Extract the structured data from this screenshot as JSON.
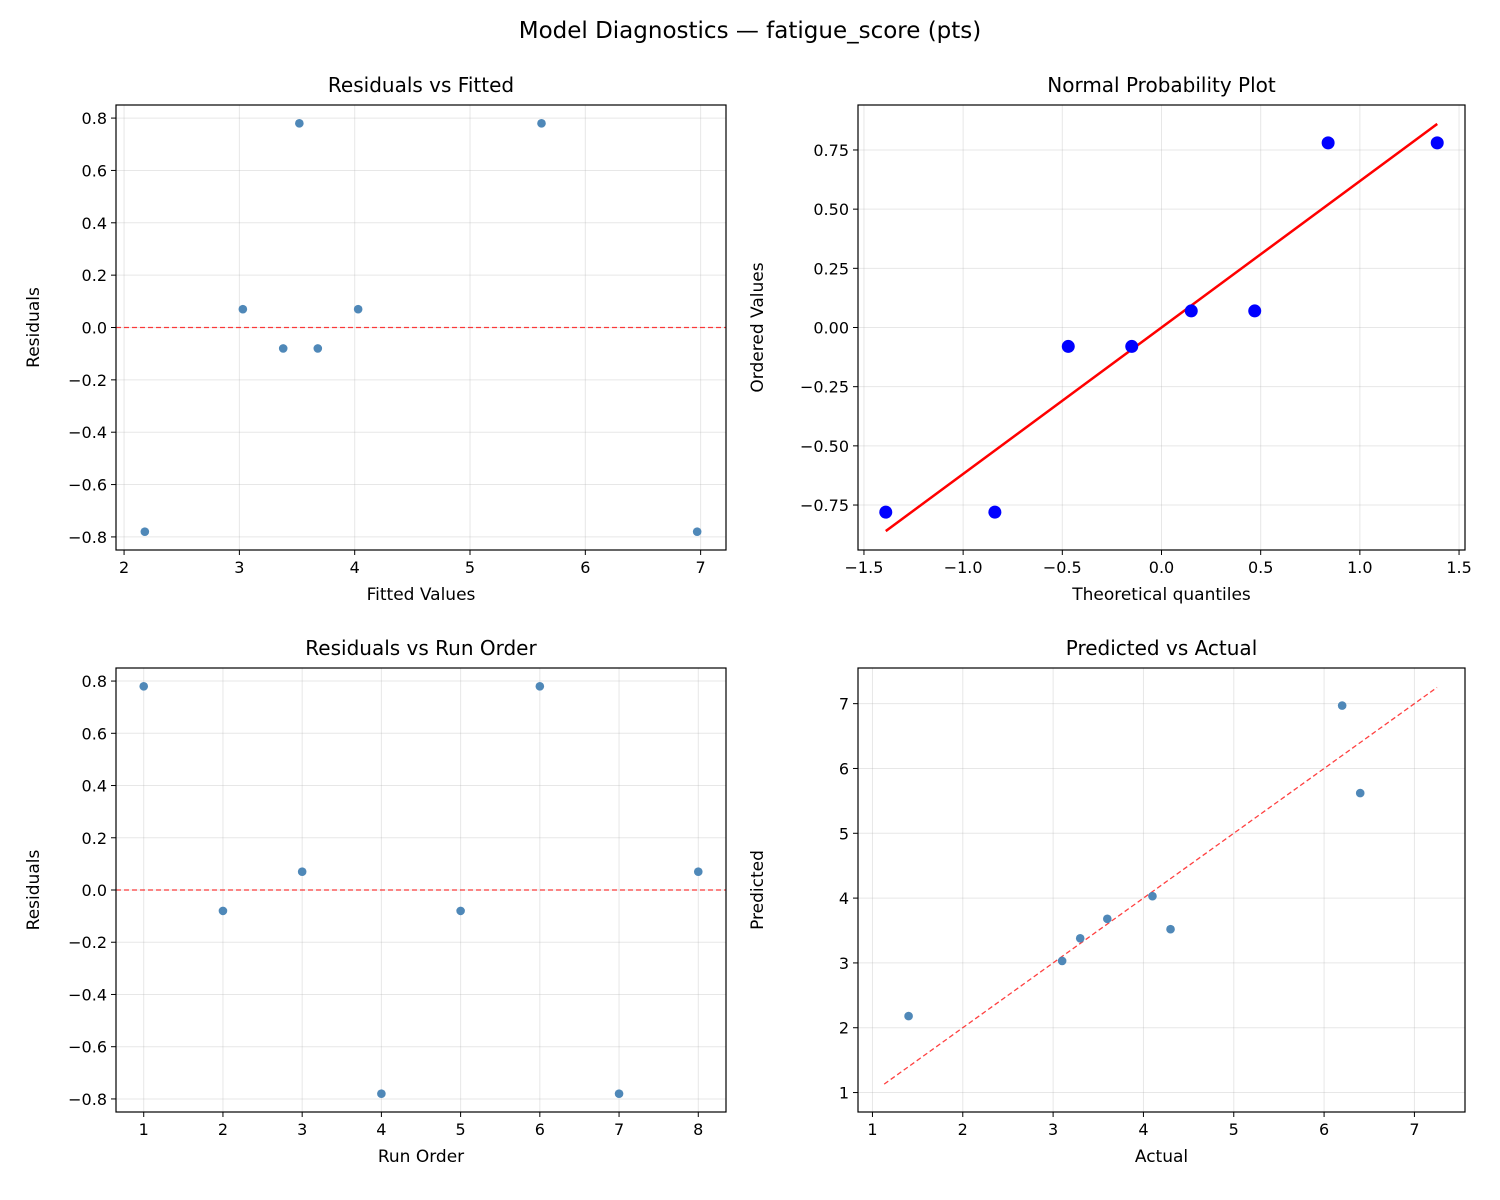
{
  "title": "Model Diagnostics — fatigue_score (pts)",
  "chart_data": [
    {
      "type": "scatter",
      "title": "Residuals vs Fitted",
      "xlabel": "Fitted Values",
      "ylabel": "Residuals",
      "xlim": [
        1.93,
        7.22
      ],
      "ylim": [
        -0.85,
        0.85
      ],
      "grid": true,
      "xticks": [
        2,
        3,
        4,
        5,
        6,
        7
      ],
      "xtick_labels": [
        "2",
        "3",
        "4",
        "5",
        "6",
        "7"
      ],
      "yticks": [
        -0.8,
        -0.6,
        -0.4,
        -0.2,
        0,
        0.2,
        0.4,
        0.6,
        0.8
      ],
      "ytick_labels": [
        "−0.8",
        "−0.6",
        "−0.4",
        "−0.2",
        "0.0",
        "0.2",
        "0.4",
        "0.6",
        "0.8"
      ],
      "point_color": "#4682b4",
      "point_size": "small",
      "x": [
        2.18,
        3.03,
        3.38,
        3.52,
        3.68,
        4.03,
        5.62,
        6.97
      ],
      "y": [
        -0.78,
        0.07,
        -0.08,
        0.78,
        -0.08,
        0.07,
        0.78,
        -0.78
      ],
      "reference_line": {
        "type": "horizontal",
        "value": 0,
        "style": "dashed",
        "color": "#ff0000"
      }
    },
    {
      "type": "scatter",
      "title": "Normal Probability Plot",
      "xlabel": "Theoretical quantiles",
      "ylabel": "Ordered Values",
      "xlim": [
        -1.53,
        1.53
      ],
      "ylim": [
        -0.94,
        0.94
      ],
      "grid": true,
      "xticks": [
        -1.5,
        -1,
        -0.5,
        0,
        0.5,
        1,
        1.5
      ],
      "xtick_labels": [
        "−1.5",
        "−1.0",
        "−0.5",
        "0.0",
        "0.5",
        "1.0",
        "1.5"
      ],
      "yticks": [
        -0.75,
        -0.5,
        -0.25,
        0,
        0.25,
        0.5,
        0.75
      ],
      "ytick_labels": [
        "−0.75",
        "−0.50",
        "−0.25",
        "0.00",
        "0.25",
        "0.50",
        "0.75"
      ],
      "point_color": "#0000ff",
      "point_size": "large",
      "x": [
        -1.39,
        -0.84,
        -0.47,
        -0.15,
        0.15,
        0.47,
        0.84,
        1.39
      ],
      "y": [
        -0.78,
        -0.78,
        -0.08,
        -0.08,
        0.07,
        0.07,
        0.78,
        0.78
      ],
      "reference_line": {
        "type": "segment",
        "x": [
          -1.39,
          1.39
        ],
        "y": [
          -0.86,
          0.86
        ],
        "style": "solid",
        "color": "#ff0000"
      }
    },
    {
      "type": "scatter",
      "title": "Residuals vs Run Order",
      "xlabel": "Run Order",
      "ylabel": "Residuals",
      "xlim": [
        0.65,
        8.35
      ],
      "ylim": [
        -0.85,
        0.85
      ],
      "grid": true,
      "xticks": [
        1,
        2,
        3,
        4,
        5,
        6,
        7,
        8
      ],
      "xtick_labels": [
        "1",
        "2",
        "3",
        "4",
        "5",
        "6",
        "7",
        "8"
      ],
      "yticks": [
        -0.8,
        -0.6,
        -0.4,
        -0.2,
        0,
        0.2,
        0.4,
        0.6,
        0.8
      ],
      "ytick_labels": [
        "−0.8",
        "−0.6",
        "−0.4",
        "−0.2",
        "0.0",
        "0.2",
        "0.4",
        "0.6",
        "0.8"
      ],
      "point_color": "#4682b4",
      "point_size": "small",
      "x": [
        1,
        2,
        3,
        4,
        5,
        6,
        7,
        8
      ],
      "y": [
        0.78,
        -0.08,
        0.07,
        -0.78,
        -0.08,
        0.78,
        -0.78,
        0.07
      ],
      "reference_line": {
        "type": "horizontal",
        "value": 0,
        "style": "dashed",
        "color": "#ff0000"
      }
    },
    {
      "type": "scatter",
      "title": "Predicted vs Actual",
      "xlabel": "Actual",
      "ylabel": "Predicted",
      "xlim": [
        0.84,
        7.56
      ],
      "ylim": [
        0.7,
        7.55
      ],
      "grid": true,
      "xticks": [
        1,
        2,
        3,
        4,
        5,
        6,
        7
      ],
      "xtick_labels": [
        "1",
        "2",
        "3",
        "4",
        "5",
        "6",
        "7"
      ],
      "yticks": [
        1,
        2,
        3,
        4,
        5,
        6,
        7
      ],
      "ytick_labels": [
        "1",
        "2",
        "3",
        "4",
        "5",
        "6",
        "7"
      ],
      "point_color": "#4682b4",
      "point_size": "small",
      "x": [
        1.4,
        3.1,
        3.3,
        3.6,
        4.1,
        4.3,
        6.2,
        6.4
      ],
      "y": [
        2.18,
        3.03,
        3.38,
        3.68,
        4.03,
        3.52,
        6.97,
        5.62
      ],
      "reference_line": {
        "type": "segment",
        "x": [
          1.13,
          7.25
        ],
        "y": [
          1.13,
          7.25
        ],
        "style": "dashed",
        "color": "#ff0000"
      }
    }
  ]
}
